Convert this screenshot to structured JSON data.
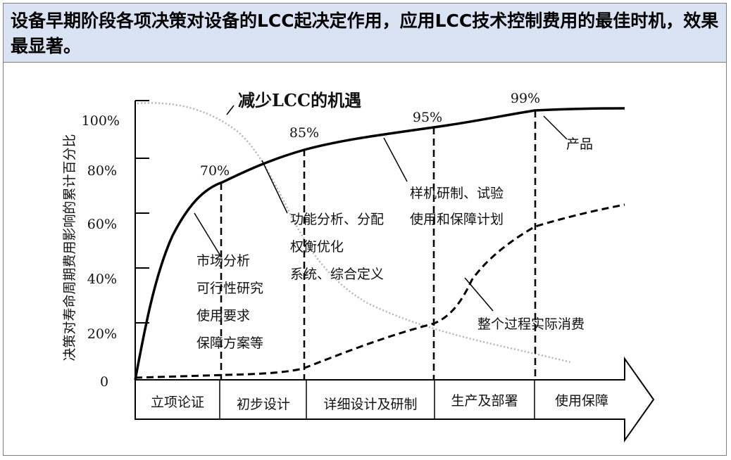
{
  "header": {
    "title": "设备早期阶段各项决策对设备的LCC起决定作用，应用LCC技术控制费用的最佳时机，效果最显著。"
  },
  "diagram": {
    "y_axis_label": "决策对寿命周期费用影响的累计百分比",
    "y_ticks": [
      "100%",
      "80%",
      "60%",
      "40%",
      "20%",
      "0"
    ],
    "opportunity_label": "减少LCC的机遇",
    "curve_points": [
      "70%",
      "85%",
      "95%",
      "99%"
    ],
    "product_label": "产品",
    "phases": [
      "立项论证",
      "初步设计",
      "详细设计及研制",
      "生产及部署",
      "使用保障"
    ],
    "notes": {
      "concept": [
        "市场分析",
        "可行性研究",
        "使用要求",
        "保障方案等"
      ],
      "preliminary": [
        "功能分析、分配",
        "权衡优化",
        "系统、综合定义"
      ],
      "detailed": [
        "样机研制、试验",
        "使用和保障计划"
      ],
      "actual_cost": "整个过程实际消费"
    }
  }
}
